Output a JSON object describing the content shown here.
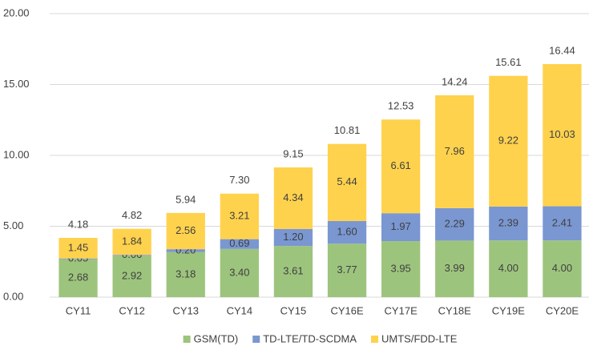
{
  "chart_data": {
    "type": "stacked_bar",
    "categories": [
      "CY11",
      "CY12",
      "CY13",
      "CY14",
      "CY15",
      "CY16E",
      "CY17E",
      "CY18E",
      "CY19E",
      "CY20E"
    ],
    "series": [
      {
        "name": "GSM(TD)",
        "color": "#9dc47d",
        "values": [
          2.68,
          2.92,
          3.18,
          3.4,
          3.61,
          3.77,
          3.95,
          3.99,
          4.0,
          4.0
        ],
        "value_labels": [
          "2.68",
          "2.92",
          "3.18",
          "3.40",
          "3.61",
          "3.77",
          "3.95",
          "3.99",
          "4.00",
          "4.00"
        ]
      },
      {
        "name": "TD-LTE/TD-SCDMA",
        "color": "#7a97d1",
        "values": [
          0.05,
          0.06,
          0.2,
          0.69,
          1.2,
          1.6,
          1.97,
          2.29,
          2.39,
          2.41
        ],
        "value_labels": [
          "0.05",
          "0.06",
          "0.20",
          "0.69",
          "1.20",
          "1.60",
          "1.97",
          "2.29",
          "2.39",
          "2.41"
        ]
      },
      {
        "name": "UMTS/FDD-LTE",
        "color": "#ffd24d",
        "values": [
          1.45,
          1.84,
          2.56,
          3.21,
          4.34,
          5.44,
          6.61,
          7.96,
          9.22,
          10.03
        ],
        "value_labels": [
          "1.45",
          "1.84",
          "2.56",
          "3.21",
          "4.34",
          "5.44",
          "6.61",
          "7.96",
          "9.22",
          "10.03"
        ]
      }
    ],
    "totals": [
      4.18,
      4.82,
      5.94,
      7.3,
      9.15,
      10.81,
      12.53,
      14.24,
      15.61,
      16.44
    ],
    "total_labels": [
      "4.18",
      "4.82",
      "5.94",
      "7.30",
      "9.15",
      "10.81",
      "12.53",
      "14.24",
      "15.61",
      "16.44"
    ],
    "ylim": [
      0,
      20
    ],
    "yticks": [
      {
        "value": 0,
        "label": "0.00"
      },
      {
        "value": 5,
        "label": "5.00"
      },
      {
        "value": 10,
        "label": "10.00"
      },
      {
        "value": 15,
        "label": "15.00"
      },
      {
        "value": 20,
        "label": "20.00"
      }
    ],
    "grid": true,
    "legend": "bottom"
  }
}
